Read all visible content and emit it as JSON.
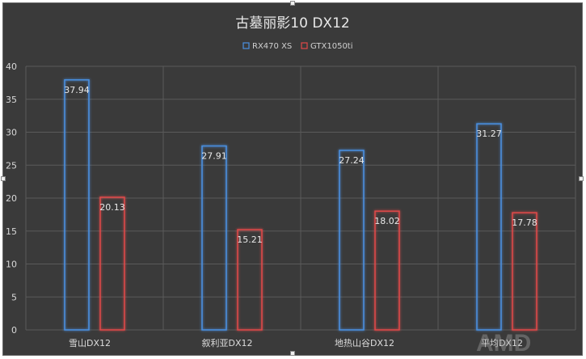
{
  "chart_data": {
    "type": "bar",
    "title": "古墓丽影10 DX12",
    "xlabel": "",
    "ylabel": "",
    "categories": [
      "雪山DX12",
      "叙利亚DX12",
      "地热山谷DX12",
      "平均DX12"
    ],
    "series": [
      {
        "name": "RX470 XS",
        "values": [
          37.94,
          27.91,
          27.24,
          31.27
        ],
        "color": "#4a90e2"
      },
      {
        "name": "GTX1050ti",
        "values": [
          20.13,
          15.21,
          18.02,
          17.78
        ],
        "color": "#e04848"
      }
    ],
    "ylim": [
      0,
      40
    ],
    "yticks": [
      0,
      5,
      10,
      15,
      20,
      25,
      30,
      35,
      40
    ],
    "grid": true,
    "legend_position": "top-center",
    "watermark": "AMD"
  }
}
